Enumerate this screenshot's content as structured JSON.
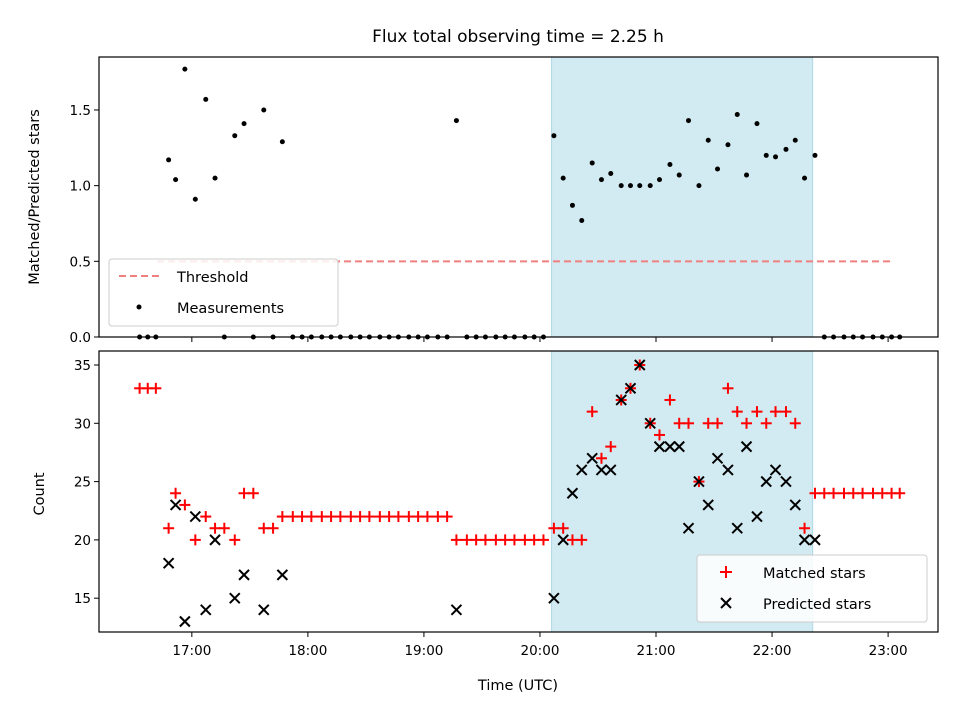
{
  "chart_data": [
    {
      "type": "scatter",
      "panel": "top",
      "title": "Flux total observing time = 2.25 h",
      "xlabel": "",
      "ylabel": "Matched/Predicted stars",
      "xlim": [
        16.2,
        23.43
      ],
      "ylim": [
        0,
        1.85
      ],
      "yticks": [
        0.0,
        0.5,
        1.0,
        1.5
      ],
      "ytick_labels": [
        "0.0",
        "0.5",
        "1.0",
        "1.5"
      ],
      "shaded_region": {
        "x": [
          20.1,
          22.35
        ],
        "color": "#add8e6"
      },
      "grid": false,
      "legend_position": "lower-left",
      "threshold": {
        "name": "Threshold",
        "y": 0.5,
        "x": [
          16.7,
          23.05
        ],
        "color": "#f08080",
        "style": "dashed"
      },
      "series": [
        {
          "name": "Measurements",
          "marker": "dot",
          "color": "#000000",
          "x": [
            16.55,
            16.62,
            16.69,
            16.8,
            16.86,
            16.94,
            17.03,
            17.12,
            17.2,
            17.28,
            17.37,
            17.45,
            17.53,
            17.62,
            17.7,
            17.78,
            17.87,
            17.95,
            18.03,
            18.12,
            18.2,
            18.28,
            18.37,
            18.45,
            18.53,
            18.62,
            18.7,
            18.78,
            18.87,
            18.95,
            19.03,
            19.12,
            19.2,
            19.28,
            19.37,
            19.45,
            19.53,
            19.62,
            19.7,
            19.78,
            19.87,
            19.95,
            20.03,
            20.12,
            20.2,
            20.28,
            20.36,
            20.45,
            20.53,
            20.61,
            20.7,
            20.78,
            20.86,
            20.95,
            21.03,
            21.12,
            21.2,
            21.28,
            21.37,
            21.45,
            21.53,
            21.62,
            21.7,
            21.78,
            21.87,
            21.95,
            22.03,
            22.12,
            22.2,
            22.28,
            22.37,
            22.45,
            22.53,
            22.62,
            22.7,
            22.78,
            22.87,
            22.95,
            23.03,
            23.1
          ],
          "y": [
            0,
            0,
            0,
            1.17,
            1.04,
            1.77,
            0.91,
            1.57,
            1.05,
            0,
            1.33,
            1.41,
            0,
            1.5,
            0,
            1.29,
            0,
            0,
            0,
            0,
            0,
            0,
            0,
            0,
            0,
            0,
            0,
            0,
            0,
            0,
            0,
            0,
            0,
            1.43,
            0,
            0,
            0,
            0,
            0,
            0,
            0,
            0,
            0,
            1.33,
            1.05,
            0.87,
            0.77,
            1.15,
            1.04,
            1.08,
            1.0,
            1.0,
            1.0,
            1.0,
            1.04,
            1.14,
            1.07,
            1.43,
            1.0,
            1.3,
            1.11,
            1.27,
            1.47,
            1.07,
            1.41,
            1.2,
            1.19,
            1.24,
            1.3,
            1.05,
            1.2,
            0,
            0,
            0,
            0,
            0,
            0,
            0,
            0,
            0
          ]
        }
      ]
    },
    {
      "type": "scatter",
      "panel": "bottom",
      "title": "",
      "xlabel": "Time (UTC)",
      "ylabel": "Count",
      "xlim": [
        16.2,
        23.43
      ],
      "ylim": [
        12.1,
        36.2
      ],
      "xticks": [
        17,
        18,
        19,
        20,
        21,
        22,
        23
      ],
      "xtick_labels": [
        "17:00",
        "18:00",
        "19:00",
        "20:00",
        "21:00",
        "22:00",
        "23:00"
      ],
      "yticks": [
        15,
        20,
        25,
        30,
        35
      ],
      "ytick_labels": [
        "15",
        "20",
        "25",
        "30",
        "35"
      ],
      "shaded_region": {
        "x": [
          20.1,
          22.35
        ],
        "color": "#add8e6"
      },
      "grid": false,
      "legend_position": "lower-right",
      "series": [
        {
          "name": "Matched stars",
          "marker": "plus",
          "color": "#ff0000",
          "x": [
            16.55,
            16.62,
            16.69,
            16.8,
            16.86,
            16.94,
            17.03,
            17.12,
            17.2,
            17.28,
            17.37,
            17.45,
            17.53,
            17.62,
            17.7,
            17.78,
            17.87,
            17.95,
            18.03,
            18.12,
            18.2,
            18.28,
            18.37,
            18.45,
            18.53,
            18.62,
            18.7,
            18.78,
            18.87,
            18.95,
            19.03,
            19.12,
            19.2,
            19.28,
            19.37,
            19.45,
            19.53,
            19.62,
            19.7,
            19.78,
            19.87,
            19.95,
            20.03,
            20.12,
            20.2,
            20.28,
            20.36,
            20.45,
            20.53,
            20.61,
            20.7,
            20.78,
            20.86,
            20.95,
            21.03,
            21.12,
            21.2,
            21.28,
            21.37,
            21.45,
            21.53,
            21.62,
            21.7,
            21.78,
            21.87,
            21.95,
            22.03,
            22.12,
            22.2,
            22.28,
            22.37,
            22.45,
            22.53,
            22.62,
            22.7,
            22.78,
            22.87,
            22.95,
            23.03,
            23.1
          ],
          "y": [
            33,
            33,
            33,
            21,
            24,
            23,
            20,
            22,
            21,
            21,
            20,
            24,
            24,
            21,
            21,
            22,
            22,
            22,
            22,
            22,
            22,
            22,
            22,
            22,
            22,
            22,
            22,
            22,
            22,
            22,
            22,
            22,
            22,
            20,
            20,
            20,
            20,
            20,
            20,
            20,
            20,
            20,
            20,
            21,
            21,
            20,
            20,
            31,
            27,
            28,
            32,
            33,
            35,
            30,
            29,
            32,
            30,
            30,
            25,
            30,
            30,
            33,
            31,
            30,
            31,
            30,
            31,
            31,
            30,
            21,
            24,
            24,
            24,
            24,
            24,
            24,
            24,
            24,
            24,
            24
          ]
        },
        {
          "name": "Predicted stars",
          "marker": "x",
          "color": "#000000",
          "x": [
            16.8,
            16.86,
            16.94,
            17.03,
            17.12,
            17.2,
            17.37,
            17.45,
            17.62,
            17.78,
            19.28,
            20.12,
            20.2,
            20.28,
            20.36,
            20.45,
            20.53,
            20.61,
            20.7,
            20.78,
            20.86,
            20.95,
            21.03,
            21.12,
            21.2,
            21.28,
            21.37,
            21.45,
            21.53,
            21.62,
            21.7,
            21.78,
            21.87,
            21.95,
            22.03,
            22.12,
            22.2,
            22.28,
            22.37
          ],
          "y": [
            18,
            23,
            13,
            22,
            14,
            20,
            15,
            17,
            14,
            17,
            14,
            15,
            20,
            24,
            26,
            27,
            26,
            26,
            32,
            33,
            35,
            30,
            28,
            28,
            28,
            21,
            25,
            23,
            27,
            26,
            21,
            28,
            22,
            25,
            26,
            25,
            23,
            20,
            20
          ]
        }
      ]
    }
  ]
}
